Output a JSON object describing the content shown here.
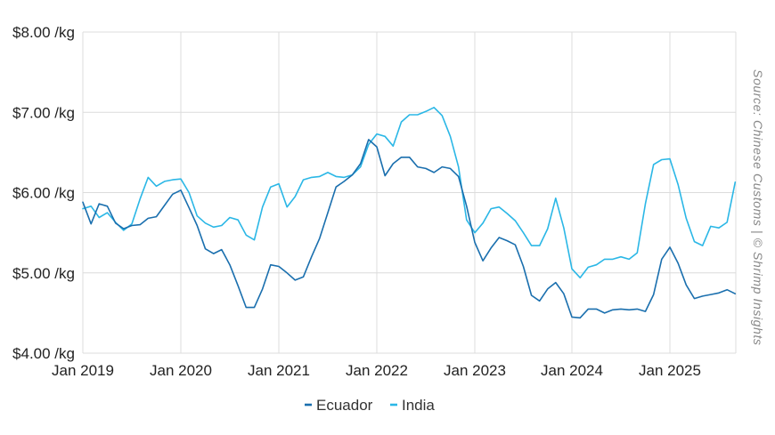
{
  "chart_data": {
    "type": "line",
    "title": "",
    "xlabel": "",
    "ylabel": "",
    "ylim": [
      4.0,
      8.0
    ],
    "y_ticks": [
      {
        "value": 8.0,
        "label": "$8.00 /kg"
      },
      {
        "value": 7.0,
        "label": "$7.00 /kg"
      },
      {
        "value": 6.0,
        "label": "$6.00 /kg"
      },
      {
        "value": 5.0,
        "label": "$5.00 /kg"
      },
      {
        "value": 4.0,
        "label": "$4.00 /kg"
      }
    ],
    "x_ticks": [
      {
        "value": "2019-01",
        "label": "Jan 2019"
      },
      {
        "value": "2020-01",
        "label": "Jan 2020"
      },
      {
        "value": "2021-01",
        "label": "Jan 2021"
      },
      {
        "value": "2022-01",
        "label": "Jan 2022"
      },
      {
        "value": "2023-01",
        "label": "Jan 2023"
      },
      {
        "value": "2024-01",
        "label": "Jan 2024"
      },
      {
        "value": "2025-01",
        "label": "Jan 2025"
      }
    ],
    "x": [
      "2019-01",
      "2019-02",
      "2019-03",
      "2019-04",
      "2019-05",
      "2019-06",
      "2019-07",
      "2019-08",
      "2019-09",
      "2019-10",
      "2019-11",
      "2019-12",
      "2020-01",
      "2020-02",
      "2020-03",
      "2020-04",
      "2020-05",
      "2020-06",
      "2020-07",
      "2020-08",
      "2020-09",
      "2020-10",
      "2020-11",
      "2020-12",
      "2021-01",
      "2021-02",
      "2021-03",
      "2021-04",
      "2021-05",
      "2021-06",
      "2021-07",
      "2021-08",
      "2021-09",
      "2021-10",
      "2021-11",
      "2021-12",
      "2022-01",
      "2022-02",
      "2022-03",
      "2022-04",
      "2022-05",
      "2022-06",
      "2022-07",
      "2022-08",
      "2022-09",
      "2022-10",
      "2022-11",
      "2022-12",
      "2023-01",
      "2023-02",
      "2023-03",
      "2023-04",
      "2023-05",
      "2023-06",
      "2023-07",
      "2023-08",
      "2023-09",
      "2023-10",
      "2023-11",
      "2023-12",
      "2024-01",
      "2024-02",
      "2024-03",
      "2024-04",
      "2024-05",
      "2024-06",
      "2024-07",
      "2024-08",
      "2024-09",
      "2024-10",
      "2024-11",
      "2024-12",
      "2025-01",
      "2025-02",
      "2025-03",
      "2025-04",
      "2025-05",
      "2025-06",
      "2025-07",
      "2025-08",
      "2025-09"
    ],
    "series": [
      {
        "name": "Ecuador",
        "color": "#1a6fae",
        "values": [
          5.88,
          5.61,
          5.86,
          5.83,
          5.62,
          5.55,
          5.59,
          5.6,
          5.68,
          5.7,
          5.84,
          5.98,
          6.03,
          5.81,
          5.59,
          5.3,
          5.24,
          5.29,
          5.1,
          4.84,
          4.57,
          4.57,
          4.8,
          5.1,
          5.08,
          5.0,
          4.91,
          4.95,
          5.2,
          5.43,
          5.75,
          6.07,
          6.14,
          6.22,
          6.36,
          6.66,
          6.57,
          6.21,
          6.36,
          6.44,
          6.44,
          6.32,
          6.3,
          6.25,
          6.32,
          6.3,
          6.2,
          5.83,
          5.38,
          5.15,
          5.31,
          5.44,
          5.4,
          5.35,
          5.08,
          4.72,
          4.65,
          4.8,
          4.88,
          4.74,
          4.45,
          4.44,
          4.55,
          4.55,
          4.5,
          4.54,
          4.55,
          4.54,
          4.55,
          4.52,
          4.73,
          5.17,
          5.32,
          5.12,
          4.85,
          4.68,
          4.71,
          4.73,
          4.75,
          4.79,
          4.74
        ]
      },
      {
        "name": "India",
        "color": "#2bb7e6",
        "values": [
          5.8,
          5.83,
          5.69,
          5.75,
          5.63,
          5.53,
          5.61,
          5.92,
          6.19,
          6.08,
          6.14,
          6.16,
          6.17,
          6.0,
          5.71,
          5.62,
          5.57,
          5.59,
          5.69,
          5.66,
          5.47,
          5.41,
          5.82,
          6.07,
          6.11,
          5.82,
          5.95,
          6.16,
          6.19,
          6.2,
          6.25,
          6.2,
          6.19,
          6.22,
          6.32,
          6.6,
          6.73,
          6.7,
          6.58,
          6.88,
          6.97,
          6.97,
          7.01,
          7.06,
          6.96,
          6.7,
          6.32,
          5.66,
          5.5,
          5.62,
          5.8,
          5.82,
          5.74,
          5.65,
          5.5,
          5.34,
          5.34,
          5.55,
          5.93,
          5.56,
          5.05,
          4.94,
          5.07,
          5.1,
          5.17,
          5.17,
          5.2,
          5.17,
          5.25,
          5.86,
          6.35,
          6.41,
          6.42,
          6.1,
          5.68,
          5.39,
          5.34,
          5.58,
          5.56,
          5.63,
          6.13
        ]
      }
    ],
    "legend": {
      "position": "bottom-center"
    },
    "grid": true,
    "annotation": "Source: Chinese Customs | © Shrimp Insights"
  }
}
